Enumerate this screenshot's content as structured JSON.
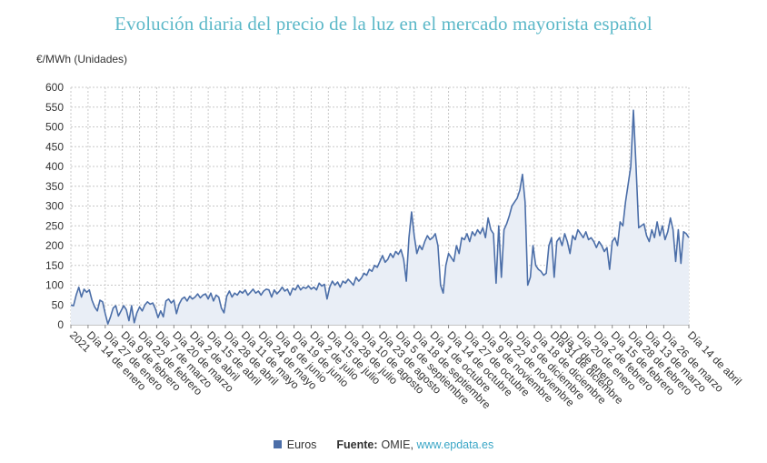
{
  "title": "Evolución diaria del precio de la luz en el mercado mayorista español",
  "legend": {
    "series_name": "Euros",
    "source_label": "Fuente:",
    "source_text": "OMIE,",
    "source_link": "www.epdata.es"
  },
  "colors": {
    "line": "#4b6ea8",
    "fill": "#e9eef6",
    "title": "#5cb8c8",
    "grid": "#c8c8c8"
  },
  "chart_data": {
    "type": "area",
    "title": "Evolución diaria del precio de la luz en el mercado mayorista español",
    "ylabel": "€/MWh (Unidades)",
    "xlabel": "",
    "ylim": [
      0,
      600
    ],
    "yticks": [
      0,
      50,
      100,
      150,
      200,
      250,
      300,
      350,
      400,
      450,
      500,
      550,
      600
    ],
    "grid": true,
    "legend_position": "bottom",
    "xticks": [
      "2021",
      "Día 14 de enero",
      "Día 27 de enero",
      "Día 9 de febrero",
      "Día 22 de febrero",
      "Día 7 de marzo",
      "Día 20 de marzo",
      "Día 2 de abril",
      "Día 15 de abril",
      "Día 28 de abril",
      "Día 11 de mayo",
      "Día 24 de mayo",
      "Día 6 de junio",
      "Día 19 de junio",
      "Día 2 de julio",
      "Día 15 de julio",
      "Día 28 de julio",
      "Día 10 de agosto",
      "Día 23 de agosto",
      "Día 5 de septiembre",
      "Día 18 de septiembre",
      "Día 1 de octubre",
      "Día 14 de octubre",
      "Día 27 de octubre",
      "Día 9 de noviembre",
      "Día 22 de noviembre",
      "Día 5 de diciembre",
      "Día 18 de diciembre",
      "Día 31 de diciembre",
      "Día 7 de enero",
      "Día 20 de enero",
      "Día 2 de febrero",
      "Día 15 de febrero",
      "Día 28 de febrero",
      "Día 13 de marzo",
      "Día 26 de marzo",
      "Día 14 de abril"
    ],
    "xtick_days": [
      0,
      13,
      26,
      39,
      52,
      65,
      78,
      91,
      104,
      117,
      130,
      143,
      156,
      169,
      182,
      195,
      208,
      221,
      234,
      247,
      260,
      273,
      286,
      299,
      312,
      325,
      338,
      351,
      364,
      371,
      384,
      397,
      410,
      423,
      436,
      449,
      468
    ],
    "series": [
      {
        "name": "Euros",
        "points": [
          [
            0,
            50
          ],
          [
            2,
            48
          ],
          [
            4,
            75
          ],
          [
            6,
            95
          ],
          [
            8,
            70
          ],
          [
            10,
            90
          ],
          [
            12,
            82
          ],
          [
            14,
            88
          ],
          [
            16,
            62
          ],
          [
            18,
            45
          ],
          [
            20,
            35
          ],
          [
            22,
            62
          ],
          [
            24,
            58
          ],
          [
            26,
            28
          ],
          [
            28,
            2
          ],
          [
            30,
            20
          ],
          [
            32,
            42
          ],
          [
            34,
            48
          ],
          [
            36,
            22
          ],
          [
            38,
            35
          ],
          [
            40,
            48
          ],
          [
            42,
            38
          ],
          [
            44,
            10
          ],
          [
            46,
            48
          ],
          [
            48,
            5
          ],
          [
            50,
            30
          ],
          [
            52,
            45
          ],
          [
            54,
            35
          ],
          [
            56,
            50
          ],
          [
            58,
            58
          ],
          [
            60,
            52
          ],
          [
            62,
            55
          ],
          [
            64,
            40
          ],
          [
            66,
            18
          ],
          [
            68,
            35
          ],
          [
            70,
            20
          ],
          [
            72,
            60
          ],
          [
            74,
            65
          ],
          [
            76,
            55
          ],
          [
            78,
            62
          ],
          [
            80,
            28
          ],
          [
            82,
            52
          ],
          [
            84,
            65
          ],
          [
            86,
            70
          ],
          [
            88,
            60
          ],
          [
            90,
            72
          ],
          [
            92,
            65
          ],
          [
            94,
            70
          ],
          [
            96,
            78
          ],
          [
            98,
            68
          ],
          [
            100,
            75
          ],
          [
            102,
            78
          ],
          [
            104,
            65
          ],
          [
            106,
            80
          ],
          [
            108,
            60
          ],
          [
            110,
            75
          ],
          [
            112,
            70
          ],
          [
            114,
            42
          ],
          [
            116,
            30
          ],
          [
            118,
            72
          ],
          [
            120,
            85
          ],
          [
            122,
            70
          ],
          [
            124,
            80
          ],
          [
            126,
            75
          ],
          [
            128,
            85
          ],
          [
            130,
            80
          ],
          [
            132,
            88
          ],
          [
            134,
            75
          ],
          [
            136,
            82
          ],
          [
            138,
            90
          ],
          [
            140,
            80
          ],
          [
            142,
            85
          ],
          [
            144,
            75
          ],
          [
            146,
            85
          ],
          [
            148,
            90
          ],
          [
            150,
            88
          ],
          [
            152,
            70
          ],
          [
            154,
            88
          ],
          [
            156,
            78
          ],
          [
            158,
            85
          ],
          [
            160,
            95
          ],
          [
            162,
            85
          ],
          [
            164,
            90
          ],
          [
            166,
            75
          ],
          [
            168,
            92
          ],
          [
            170,
            88
          ],
          [
            172,
            100
          ],
          [
            174,
            88
          ],
          [
            176,
            95
          ],
          [
            178,
            92
          ],
          [
            180,
            98
          ],
          [
            182,
            90
          ],
          [
            184,
            95
          ],
          [
            186,
            88
          ],
          [
            188,
            105
          ],
          [
            190,
            98
          ],
          [
            192,
            102
          ],
          [
            194,
            65
          ],
          [
            196,
            95
          ],
          [
            198,
            110
          ],
          [
            200,
            100
          ],
          [
            202,
            108
          ],
          [
            204,
            95
          ],
          [
            206,
            110
          ],
          [
            208,
            105
          ],
          [
            210,
            115
          ],
          [
            212,
            108
          ],
          [
            214,
            100
          ],
          [
            216,
            120
          ],
          [
            218,
            110
          ],
          [
            220,
            118
          ],
          [
            222,
            130
          ],
          [
            224,
            125
          ],
          [
            226,
            140
          ],
          [
            228,
            135
          ],
          [
            230,
            150
          ],
          [
            232,
            145
          ],
          [
            234,
            160
          ],
          [
            236,
            175
          ],
          [
            238,
            158
          ],
          [
            240,
            165
          ],
          [
            242,
            180
          ],
          [
            244,
            170
          ],
          [
            246,
            185
          ],
          [
            248,
            178
          ],
          [
            250,
            190
          ],
          [
            252,
            165
          ],
          [
            254,
            110
          ],
          [
            256,
            220
          ],
          [
            258,
            285
          ],
          [
            260,
            225
          ],
          [
            262,
            180
          ],
          [
            264,
            200
          ],
          [
            266,
            190
          ],
          [
            268,
            210
          ],
          [
            270,
            225
          ],
          [
            272,
            215
          ],
          [
            274,
            220
          ],
          [
            276,
            230
          ],
          [
            278,
            200
          ],
          [
            280,
            100
          ],
          [
            282,
            80
          ],
          [
            284,
            150
          ],
          [
            286,
            180
          ],
          [
            288,
            170
          ],
          [
            290,
            160
          ],
          [
            292,
            200
          ],
          [
            294,
            180
          ],
          [
            296,
            220
          ],
          [
            298,
            215
          ],
          [
            300,
            230
          ],
          [
            302,
            210
          ],
          [
            304,
            235
          ],
          [
            306,
            225
          ],
          [
            308,
            240
          ],
          [
            310,
            230
          ],
          [
            312,
            245
          ],
          [
            314,
            220
          ],
          [
            316,
            270
          ],
          [
            318,
            240
          ],
          [
            320,
            230
          ],
          [
            322,
            105
          ],
          [
            324,
            250
          ],
          [
            326,
            120
          ],
          [
            328,
            240
          ],
          [
            330,
            255
          ],
          [
            332,
            275
          ],
          [
            334,
            300
          ],
          [
            336,
            310
          ],
          [
            338,
            320
          ],
          [
            340,
            340
          ],
          [
            342,
            380
          ],
          [
            344,
            310
          ],
          [
            346,
            100
          ],
          [
            348,
            120
          ],
          [
            350,
            200
          ],
          [
            352,
            150
          ],
          [
            354,
            140
          ],
          [
            356,
            135
          ],
          [
            358,
            125
          ],
          [
            360,
            130
          ],
          [
            362,
            200
          ],
          [
            364,
            220
          ],
          [
            366,
            120
          ],
          [
            368,
            210
          ],
          [
            370,
            220
          ],
          [
            372,
            200
          ],
          [
            374,
            230
          ],
          [
            376,
            210
          ],
          [
            378,
            180
          ],
          [
            380,
            225
          ],
          [
            382,
            215
          ],
          [
            384,
            240
          ],
          [
            386,
            230
          ],
          [
            388,
            220
          ],
          [
            390,
            235
          ],
          [
            392,
            215
          ],
          [
            394,
            220
          ],
          [
            396,
            210
          ],
          [
            398,
            195
          ],
          [
            400,
            210
          ],
          [
            402,
            200
          ],
          [
            404,
            185
          ],
          [
            406,
            195
          ],
          [
            408,
            140
          ],
          [
            410,
            210
          ],
          [
            412,
            220
          ],
          [
            414,
            200
          ],
          [
            416,
            260
          ],
          [
            418,
            250
          ],
          [
            420,
            310
          ],
          [
            422,
            355
          ],
          [
            424,
            400
          ],
          [
            426,
            542
          ],
          [
            428,
            400
          ],
          [
            430,
            245
          ],
          [
            432,
            250
          ],
          [
            434,
            255
          ],
          [
            436,
            225
          ],
          [
            438,
            210
          ],
          [
            440,
            240
          ],
          [
            442,
            220
          ],
          [
            444,
            260
          ],
          [
            446,
            225
          ],
          [
            448,
            250
          ],
          [
            450,
            215
          ],
          [
            452,
            235
          ],
          [
            454,
            270
          ],
          [
            456,
            240
          ],
          [
            458,
            160
          ],
          [
            460,
            240
          ],
          [
            462,
            155
          ],
          [
            464,
            235
          ],
          [
            466,
            230
          ],
          [
            468,
            220
          ]
        ]
      }
    ]
  }
}
